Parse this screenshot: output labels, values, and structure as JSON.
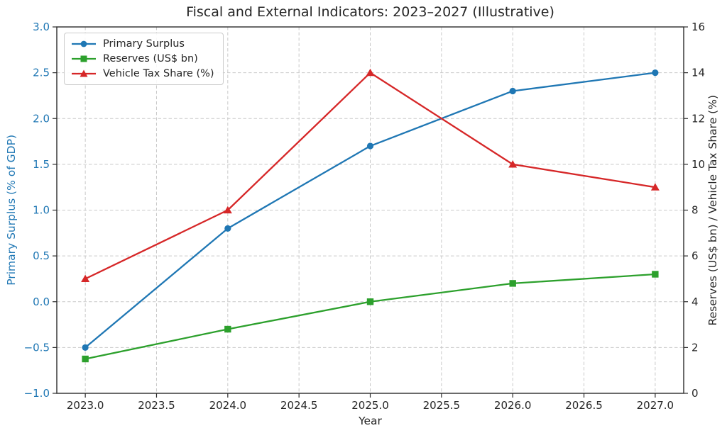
{
  "chart_data": {
    "type": "line",
    "title": "Fiscal and External Indicators: 2023–2027 (Illustrative)",
    "xlabel": "Year",
    "ylabel_left": "Primary Surplus (% of GDP)",
    "ylabel_right": "Reserves (US$ bn) / Vehicle Tax Share (%)",
    "x": [
      2023,
      2024,
      2025,
      2026,
      2027
    ],
    "xlim": [
      2022.8,
      2027.2
    ],
    "ylim_left": [
      -1.0,
      3.0
    ],
    "ylim_right": [
      0,
      16
    ],
    "grid": true,
    "legend_position": "upper-left",
    "xticks": {
      "values": [
        2023.0,
        2023.5,
        2024.0,
        2024.5,
        2025.0,
        2025.5,
        2026.0,
        2026.5,
        2027.0
      ],
      "labels": [
        "2023.0",
        "2023.5",
        "2024.0",
        "2024.5",
        "2025.0",
        "2025.5",
        "2026.0",
        "2026.5",
        "2027.0"
      ]
    },
    "yticks_left": {
      "values": [
        3.0,
        2.5,
        2.0,
        1.5,
        1.0,
        0.5,
        0.0,
        -0.5,
        -1.0
      ],
      "labels": [
        "3.0",
        "2.5",
        "2.0",
        "1.5",
        "1.0",
        "0.5",
        "0.0",
        "−0.5",
        "−1.0"
      ]
    },
    "yticks_right": {
      "values": [
        16,
        14,
        12,
        10,
        8,
        6,
        4,
        2,
        0
      ],
      "labels": [
        "16",
        "14",
        "12",
        "10",
        "8",
        "6",
        "4",
        "2",
        "0"
      ]
    },
    "series": [
      {
        "name": "Primary Surplus",
        "axis": "left",
        "color": "#1f77b4",
        "marker": "circle",
        "values": [
          -0.5,
          0.8,
          1.7,
          2.3,
          2.5
        ]
      },
      {
        "name": "Reserves (US$ bn)",
        "axis": "right",
        "color": "#2ca02c",
        "marker": "square",
        "values": [
          1.5,
          2.8,
          4.0,
          4.8,
          5.2
        ]
      },
      {
        "name": "Vehicle Tax Share (%)",
        "axis": "right",
        "color": "#d62728",
        "marker": "triangle",
        "values": [
          5,
          8,
          14,
          10,
          9
        ]
      }
    ],
    "colors": {
      "left_axis_text": "#1f77b4",
      "right_axis_text": "#262626",
      "grid": "#c9c9c9",
      "spine": "#2b2b2b",
      "text": "#262626",
      "plot_background": "#ffffff"
    }
  }
}
